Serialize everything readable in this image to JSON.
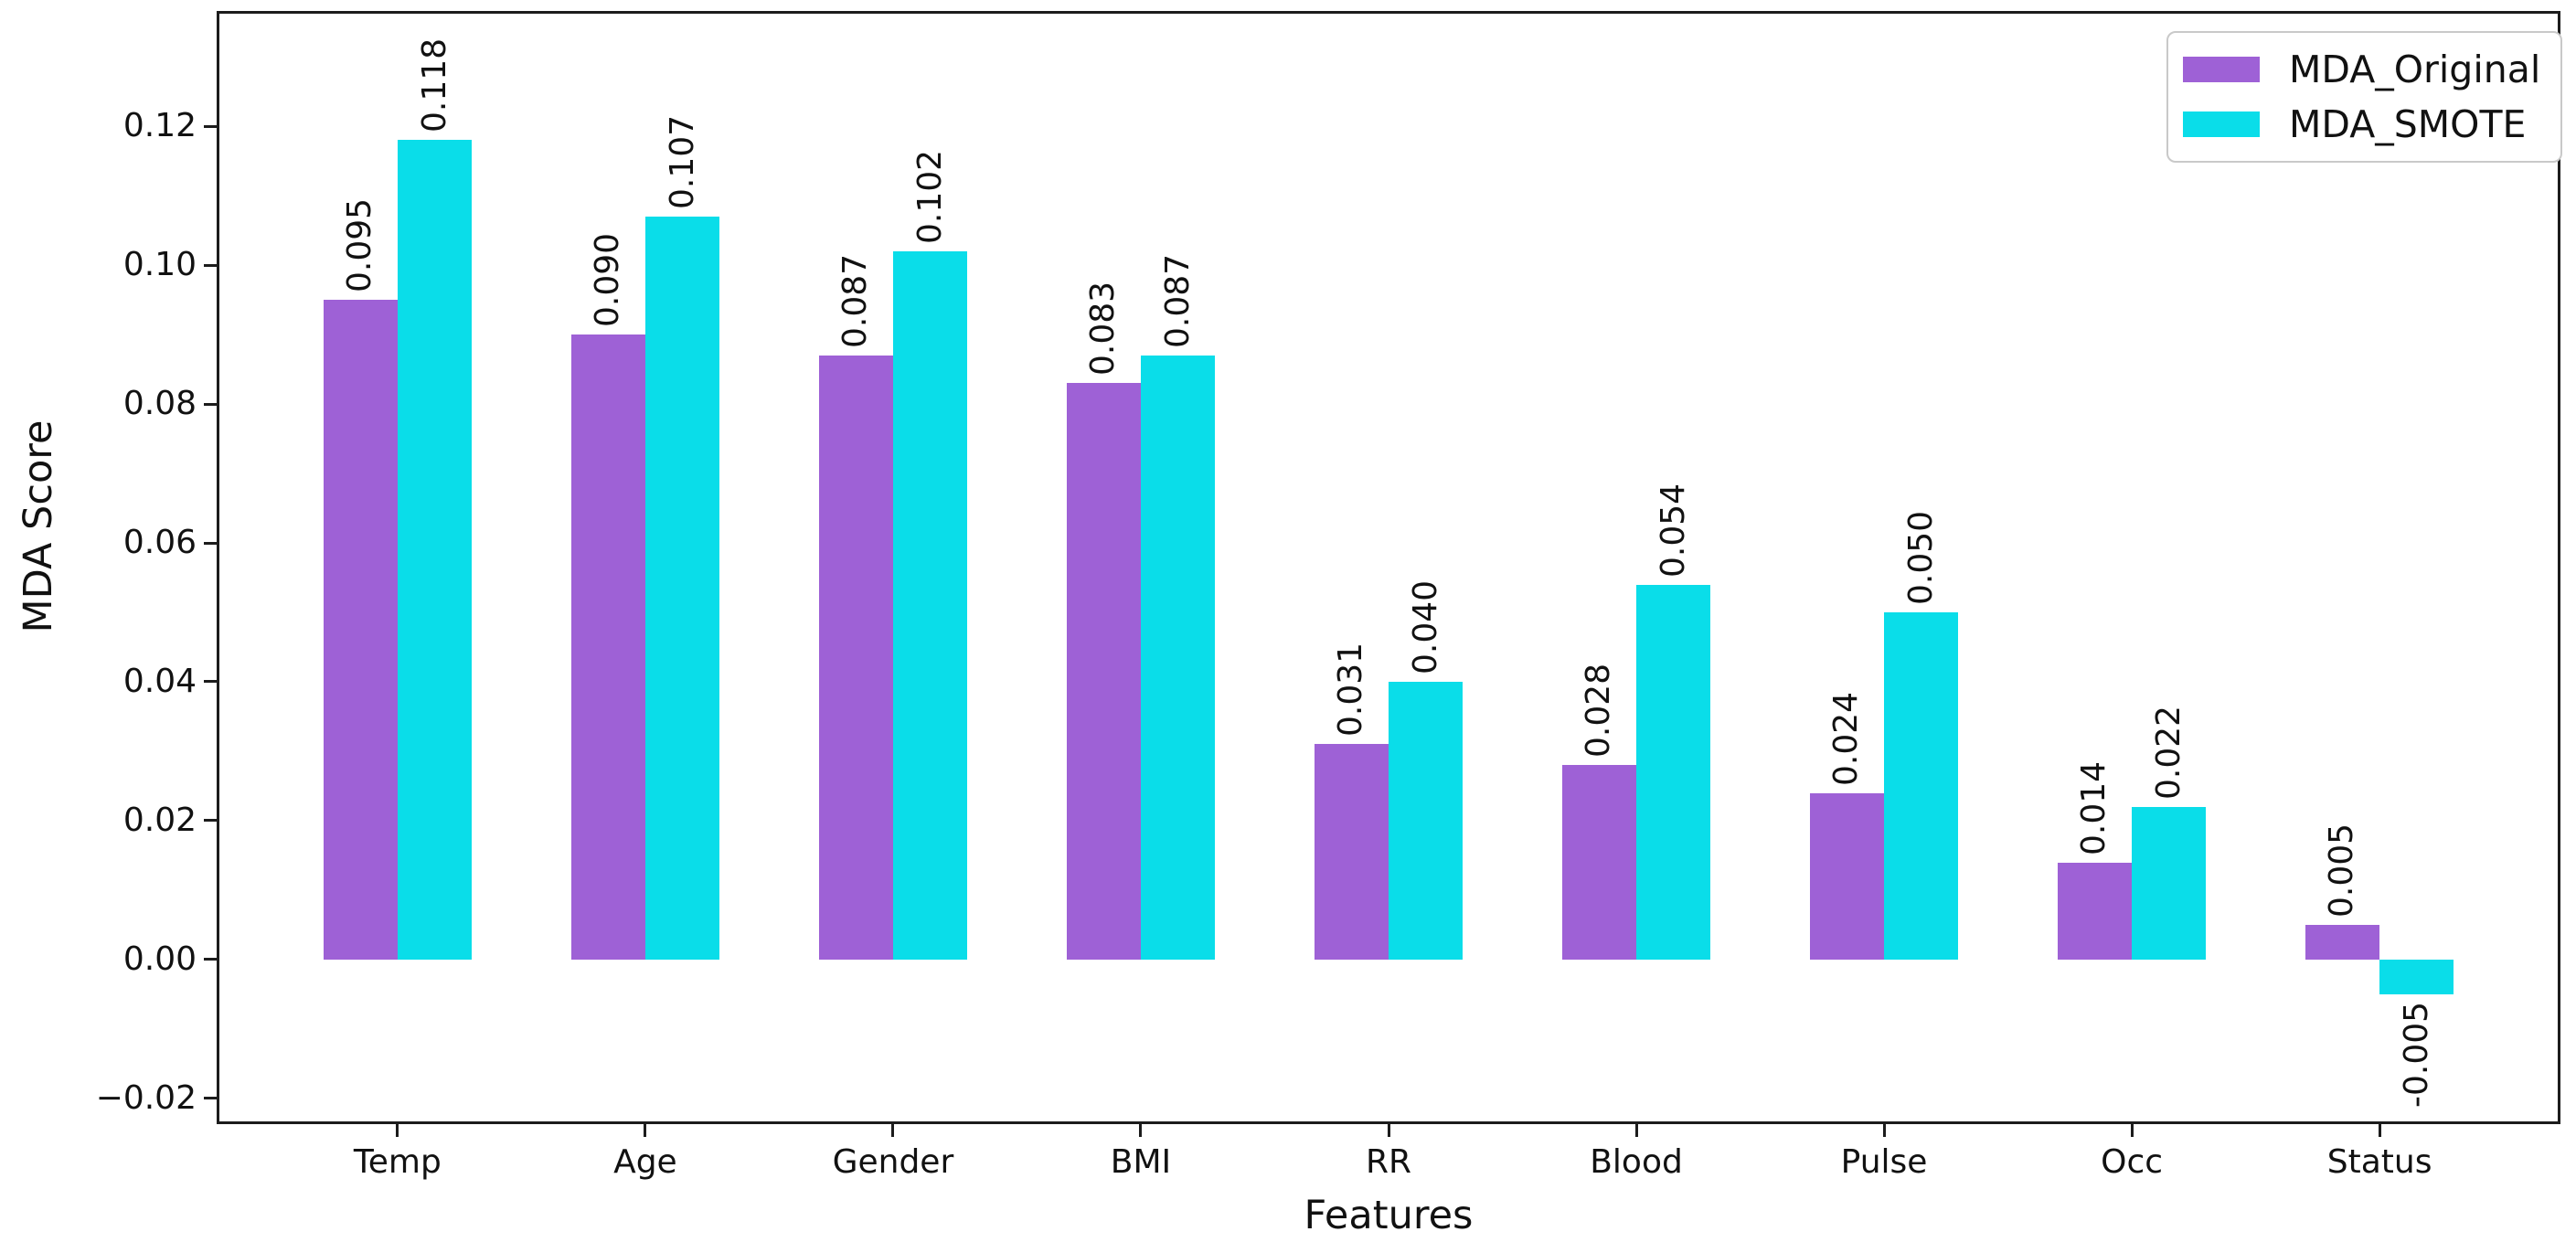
{
  "chart_data": {
    "type": "bar",
    "title": "",
    "xlabel": "Features",
    "ylabel": "MDA Score",
    "categories": [
      "Temp",
      "Age",
      "Gender",
      "BMI",
      "RR",
      "Blood",
      "Pulse",
      "Occ",
      "Status"
    ],
    "series": [
      {
        "name": "MDA_Original",
        "color": "#9e61d6",
        "values": [
          0.095,
          0.09,
          0.087,
          0.083,
          0.031,
          0.028,
          0.024,
          0.014,
          0.005
        ],
        "bar_labels": [
          "0.095",
          "0.090",
          "0.087",
          "0.083",
          "0.031",
          "0.028",
          "0.024",
          "0.014",
          "0.005"
        ]
      },
      {
        "name": "MDA_SMOTE",
        "color": "#0adde9",
        "values": [
          0.118,
          0.107,
          0.102,
          0.087,
          0.04,
          0.054,
          0.05,
          0.022,
          -0.005
        ],
        "bar_labels": [
          "0.118",
          "0.107",
          "0.102",
          "0.087",
          "0.040",
          "0.054",
          "0.050",
          "0.022",
          "-0.005"
        ]
      }
    ],
    "yticks": [
      0.12,
      0.1,
      0.08,
      0.06,
      0.04,
      0.02,
      0.0,
      -0.02
    ],
    "ytick_labels": [
      "0.12",
      "0.10",
      "0.08",
      "0.06",
      "0.04",
      "0.02",
      "0.00",
      "−0.02"
    ],
    "ylim": [
      -0.0237,
      0.1366
    ],
    "xlim": [
      -0.73,
      8.73
    ],
    "bar_half_width": 0.3,
    "grid": false,
    "legend_position": "upper right",
    "legend_entries": [
      "MDA_Original",
      "MDA_SMOTE"
    ],
    "spine_color": "#1c1c1c",
    "background_color": "#ffffff"
  }
}
